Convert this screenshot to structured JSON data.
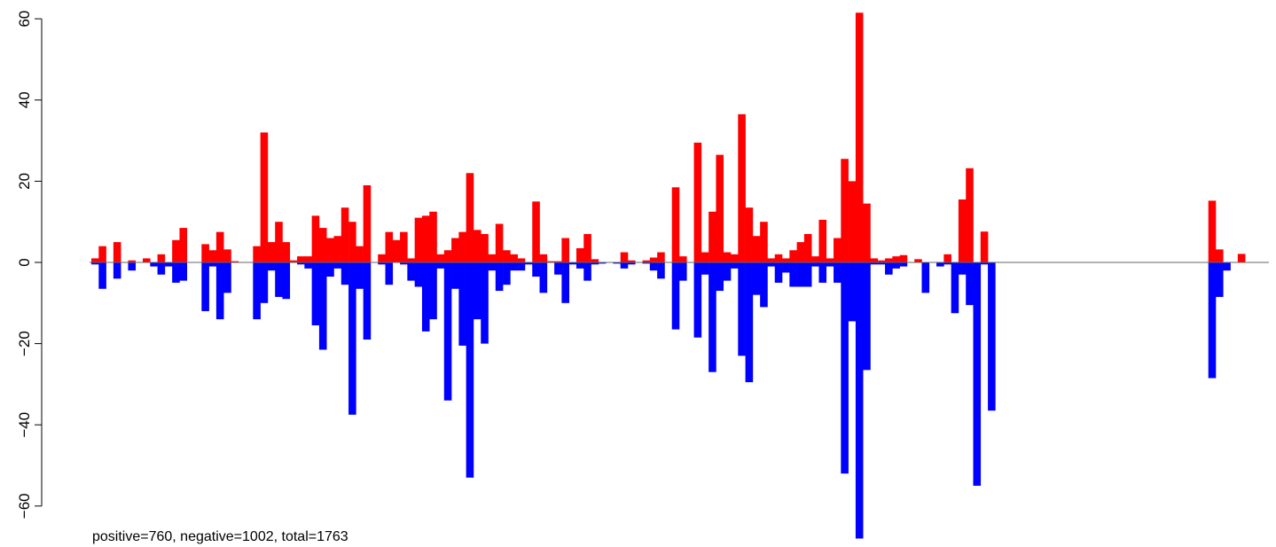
{
  "chart_data": {
    "type": "bar",
    "title": "",
    "xlabel": "",
    "ylabel": "",
    "ylim": [
      -68,
      62
    ],
    "yticks": [
      -60,
      -40,
      -20,
      0,
      20,
      40,
      60
    ],
    "ytick_labels": [
      "−60",
      "−40",
      "−20",
      "0",
      "20",
      "40",
      "60"
    ],
    "grid": false,
    "baseline": 0,
    "colors": {
      "positive": "#ff0000",
      "negative": "#0000ff",
      "baseline": "#666666",
      "axis": "#000000"
    },
    "n_bins": 160,
    "positive_bins": [
      [
        0,
        1
      ],
      [
        1,
        4
      ],
      [
        3,
        5
      ],
      [
        5,
        0.5
      ],
      [
        7,
        1
      ],
      [
        9,
        2
      ],
      [
        11,
        5.5
      ],
      [
        12,
        8.5
      ],
      [
        15,
        4.5
      ],
      [
        16,
        3
      ],
      [
        17,
        7.5
      ],
      [
        18,
        3.2
      ],
      [
        19,
        0.3
      ],
      [
        22,
        4
      ],
      [
        23,
        32
      ],
      [
        24,
        5
      ],
      [
        25,
        10
      ],
      [
        26,
        5
      ],
      [
        27,
        0.5
      ],
      [
        28,
        1.5
      ],
      [
        29,
        1.5
      ],
      [
        30,
        11.5
      ],
      [
        31,
        8.5
      ],
      [
        32,
        6
      ],
      [
        33,
        6.5
      ],
      [
        34,
        13.5
      ],
      [
        35,
        10
      ],
      [
        36,
        4
      ],
      [
        37,
        19
      ],
      [
        39,
        2
      ],
      [
        40,
        7.5
      ],
      [
        41,
        5.5
      ],
      [
        42,
        7.5
      ],
      [
        43,
        1
      ],
      [
        44,
        11
      ],
      [
        45,
        11.5
      ],
      [
        46,
        12.5
      ],
      [
        47,
        2
      ],
      [
        48,
        3
      ],
      [
        49,
        6
      ],
      [
        50,
        7.5
      ],
      [
        51,
        22
      ],
      [
        52,
        8
      ],
      [
        53,
        7
      ],
      [
        54,
        2
      ],
      [
        55,
        9.5
      ],
      [
        56,
        3
      ],
      [
        57,
        2
      ],
      [
        58,
        1
      ],
      [
        60,
        15
      ],
      [
        61,
        2
      ],
      [
        62,
        0.3
      ],
      [
        63,
        0.3
      ],
      [
        64,
        6
      ],
      [
        66,
        3.5
      ],
      [
        67,
        7
      ],
      [
        68,
        0.8
      ],
      [
        72,
        2.5
      ],
      [
        73,
        0.5
      ],
      [
        75,
        0.5
      ],
      [
        76,
        1.2
      ],
      [
        77,
        2.5
      ],
      [
        79,
        18.5
      ],
      [
        80,
        1.5
      ],
      [
        82,
        29.5
      ],
      [
        83,
        2.5
      ],
      [
        84,
        12.5
      ],
      [
        85,
        26.5
      ],
      [
        86,
        2.5
      ],
      [
        87,
        2
      ],
      [
        88,
        36.5
      ],
      [
        89,
        13.5
      ],
      [
        90,
        6.5
      ],
      [
        91,
        10
      ],
      [
        92,
        1
      ],
      [
        93,
        2
      ],
      [
        94,
        1
      ],
      [
        95,
        3
      ],
      [
        96,
        5
      ],
      [
        97,
        7
      ],
      [
        98,
        1.5
      ],
      [
        99,
        10.5
      ],
      [
        100,
        1
      ],
      [
        101,
        6
      ],
      [
        102,
        25.5
      ],
      [
        103,
        20
      ],
      [
        104,
        61.5
      ],
      [
        105,
        14.5
      ],
      [
        106,
        1
      ],
      [
        107,
        0.5
      ],
      [
        108,
        1
      ],
      [
        109,
        1.5
      ],
      [
        110,
        1.8
      ],
      [
        112,
        0.8
      ],
      [
        116,
        2
      ],
      [
        118,
        15.5
      ],
      [
        119,
        23.2
      ],
      [
        121,
        7.6
      ],
      [
        152,
        15.2
      ],
      [
        153,
        3.2
      ],
      [
        156,
        2.1
      ]
    ],
    "negative_bins": [
      [
        0,
        -0.5
      ],
      [
        1,
        -6.5
      ],
      [
        3,
        -4
      ],
      [
        5,
        -2
      ],
      [
        8,
        -1
      ],
      [
        9,
        -3
      ],
      [
        10,
        -1
      ],
      [
        11,
        -5
      ],
      [
        12,
        -4.5
      ],
      [
        15,
        -12
      ],
      [
        16,
        -1
      ],
      [
        17,
        -14
      ],
      [
        18,
        -7.5
      ],
      [
        22,
        -14
      ],
      [
        23,
        -10
      ],
      [
        24,
        -2
      ],
      [
        25,
        -8.5
      ],
      [
        26,
        -9
      ],
      [
        28,
        -0.5
      ],
      [
        29,
        -1.5
      ],
      [
        30,
        -15.5
      ],
      [
        31,
        -21.5
      ],
      [
        32,
        -3.5
      ],
      [
        33,
        -1.5
      ],
      [
        34,
        -5.5
      ],
      [
        35,
        -37.5
      ],
      [
        36,
        -6.5
      ],
      [
        37,
        -19
      ],
      [
        39,
        -0.5
      ],
      [
        40,
        -5.5
      ],
      [
        42,
        -0.5
      ],
      [
        43,
        -4.5
      ],
      [
        44,
        -6
      ],
      [
        45,
        -17
      ],
      [
        46,
        -14
      ],
      [
        47,
        -1.5
      ],
      [
        48,
        -34
      ],
      [
        49,
        -6.5
      ],
      [
        50,
        -20.5
      ],
      [
        51,
        -53
      ],
      [
        52,
        -14
      ],
      [
        53,
        -20
      ],
      [
        54,
        -2
      ],
      [
        55,
        -7
      ],
      [
        56,
        -5.5
      ],
      [
        57,
        -2
      ],
      [
        58,
        -2
      ],
      [
        59,
        -0.5
      ],
      [
        60,
        -3.5
      ],
      [
        61,
        -7.5
      ],
      [
        63,
        -3
      ],
      [
        64,
        -10
      ],
      [
        65,
        -0.5
      ],
      [
        66,
        -1.5
      ],
      [
        67,
        -4.5
      ],
      [
        68,
        -0.5
      ],
      [
        69,
        -0.3
      ],
      [
        71,
        -0.3
      ],
      [
        72,
        -1.5
      ],
      [
        73,
        -0.5
      ],
      [
        75,
        -0.3
      ],
      [
        76,
        -2
      ],
      [
        77,
        -4
      ],
      [
        79,
        -16.5
      ],
      [
        80,
        -4.5
      ],
      [
        82,
        -18.5
      ],
      [
        83,
        -3
      ],
      [
        84,
        -27
      ],
      [
        85,
        -7
      ],
      [
        86,
        -4.5
      ],
      [
        87,
        -1.5
      ],
      [
        88,
        -23
      ],
      [
        89,
        -29.5
      ],
      [
        90,
        -8
      ],
      [
        91,
        -11
      ],
      [
        92,
        -1
      ],
      [
        93,
        -5
      ],
      [
        94,
        -2.5
      ],
      [
        95,
        -6
      ],
      [
        96,
        -6
      ],
      [
        97,
        -6
      ],
      [
        98,
        -1
      ],
      [
        99,
        -5
      ],
      [
        100,
        -1
      ],
      [
        101,
        -5
      ],
      [
        102,
        -52
      ],
      [
        103,
        -14.5
      ],
      [
        104,
        -68
      ],
      [
        105,
        -26.5
      ],
      [
        106,
        -0.5
      ],
      [
        107,
        -0.5
      ],
      [
        108,
        -3
      ],
      [
        109,
        -1.5
      ],
      [
        110,
        -1
      ],
      [
        113,
        -7.5
      ],
      [
        115,
        -1
      ],
      [
        116,
        -0.5
      ],
      [
        117,
        -12.5
      ],
      [
        118,
        -3
      ],
      [
        119,
        -10.5
      ],
      [
        120,
        -55
      ],
      [
        121,
        -0.5
      ],
      [
        122,
        -36.5
      ],
      [
        152,
        -28.5
      ],
      [
        153,
        -8.5
      ],
      [
        154,
        -2
      ]
    ]
  },
  "footer": {
    "text": "positive=760, negative=1002, total=1763"
  }
}
